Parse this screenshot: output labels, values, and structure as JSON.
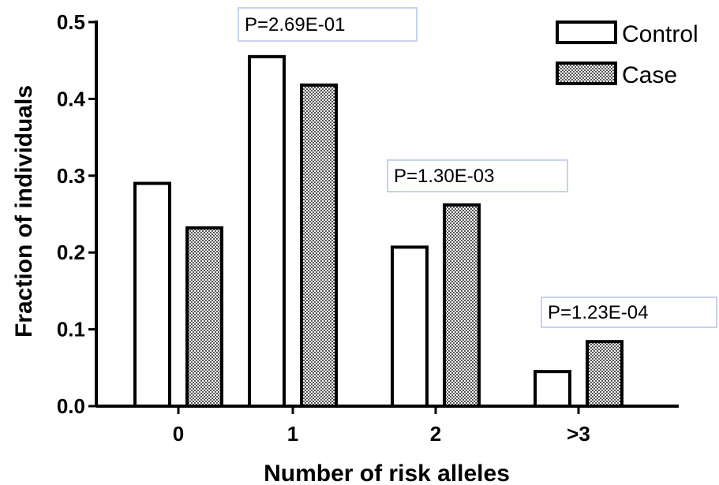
{
  "chart_data": {
    "type": "bar",
    "xlabel": "Number of risk alleles",
    "ylabel": "Fraction of individuals",
    "ylim": [
      0,
      0.5
    ],
    "y_ticks": [
      "0.0",
      "0.1",
      "0.2",
      "0.3",
      "0.4",
      "0.5"
    ],
    "categories": [
      "0",
      "1",
      "2",
      ">3"
    ],
    "series": [
      {
        "name": "Control",
        "values": [
          0.29,
          0.455,
          0.207,
          0.045
        ],
        "pattern": "open"
      },
      {
        "name": "Case",
        "values": [
          0.232,
          0.418,
          0.262,
          0.084
        ],
        "pattern": "checkered"
      }
    ],
    "legend_position": "top-right",
    "annotations": [
      {
        "text": "P=2.69E-01",
        "category": "1"
      },
      {
        "text": "P=1.30E-03",
        "category": "2"
      },
      {
        "text": "P=1.23E-04",
        "category": ">3"
      }
    ],
    "grid": false,
    "colors": {
      "bar_stroke": "#000000",
      "control_fill": "#ffffff",
      "case_pattern_dark": "#555555",
      "case_pattern_light": "#ffffff",
      "annotation_border": "#c7d2f0"
    }
  }
}
